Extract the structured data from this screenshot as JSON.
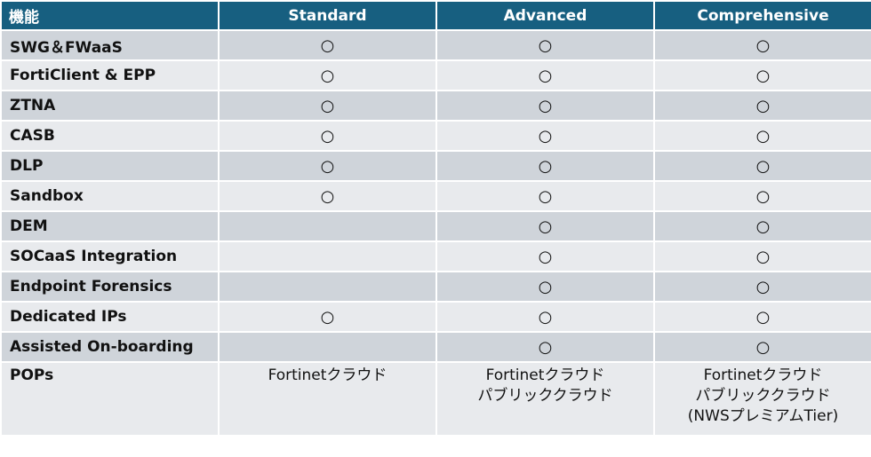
{
  "header": [
    "機能",
    "Standard",
    "Advanced",
    "Comprehensive"
  ],
  "rows": [
    {
      "feature": "SWG＆FWaaS",
      "standard": "○",
      "advanced": "○",
      "comprehensive": "○"
    },
    {
      "feature": "FortiClient & EPP",
      "standard": "○",
      "advanced": "○",
      "comprehensive": "○"
    },
    {
      "feature": "ZTNA",
      "standard": "○",
      "advanced": "○",
      "comprehensive": "○"
    },
    {
      "feature": "CASB",
      "standard": "○",
      "advanced": "○",
      "comprehensive": "○"
    },
    {
      "feature": "DLP",
      "standard": "○",
      "advanced": "○",
      "comprehensive": "○"
    },
    {
      "feature": "Sandbox",
      "standard": "○",
      "advanced": "○",
      "comprehensive": "○"
    },
    {
      "feature": "DEM",
      "standard": "",
      "advanced": "○",
      "comprehensive": "○"
    },
    {
      "feature": "SOCaaS Integration",
      "standard": "",
      "advanced": "○",
      "comprehensive": "○"
    },
    {
      "feature": "Endpoint Forensics",
      "standard": "",
      "advanced": "○",
      "comprehensive": "○"
    },
    {
      "feature": "Dedicated IPs",
      "standard": "○",
      "advanced": "○",
      "comprehensive": "○"
    },
    {
      "feature": "Assisted On-boarding",
      "standard": "",
      "advanced": "○",
      "comprehensive": "○"
    }
  ],
  "pops": {
    "feature": "POPs",
    "standard": [
      "Fortinetクラウド"
    ],
    "advanced": [
      "Fortinetクラウド",
      "パブリッククラウド"
    ],
    "comprehensive": [
      "Fortinetクラウド",
      "パブリッククラウド",
      "(NWSプレミアムTier)"
    ]
  },
  "colors": {
    "header": "#175f80",
    "row_odd": "#cfd4da",
    "row_even": "#e8eaed"
  }
}
